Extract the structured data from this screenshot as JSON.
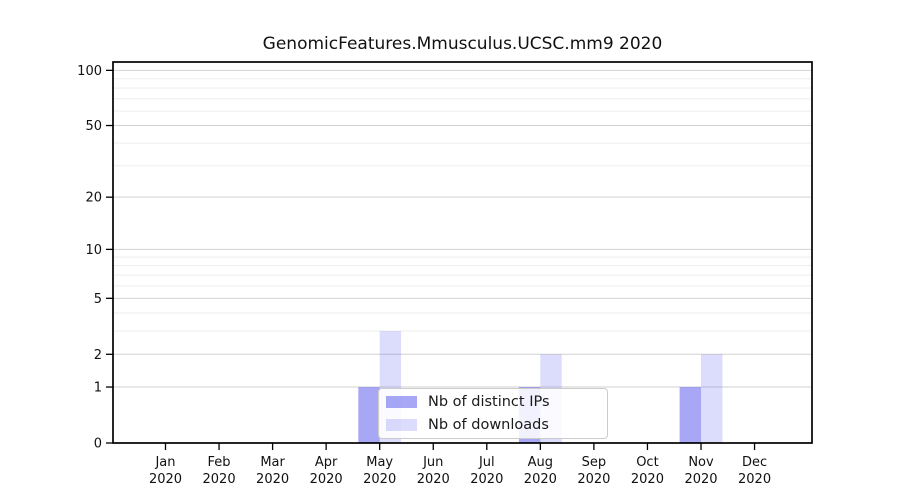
{
  "chart_data": {
    "type": "bar",
    "title": "GenomicFeatures.Mmusculus.UCSC.mm9 2020",
    "categories": [
      "Jan",
      "Feb",
      "Mar",
      "Apr",
      "May",
      "Jun",
      "Jul",
      "Aug",
      "Sep",
      "Oct",
      "Nov",
      "Dec"
    ],
    "year": "2020",
    "series": [
      {
        "name": "Nb of distinct IPs",
        "key": "distinct-ips",
        "values": [
          0,
          0,
          0,
          0,
          1,
          0,
          0,
          1,
          0,
          0,
          1,
          0
        ],
        "fill": "rgba(80,80,238,0.5)"
      },
      {
        "name": "Nb of downloads",
        "key": "downloads",
        "values": [
          0,
          0,
          0,
          0,
          3,
          0,
          0,
          2,
          0,
          0,
          2,
          0
        ],
        "fill": "rgba(80,80,238,0.2)"
      }
    ],
    "xlabel": "",
    "ylabel": "",
    "yscale": "log1p",
    "ylim": [
      0,
      111
    ],
    "yticks": [
      0,
      1,
      2,
      5,
      10,
      20,
      50,
      100
    ],
    "grid": true,
    "grid_minor": [
      3,
      4,
      6,
      7,
      8,
      9,
      30,
      40,
      60,
      70,
      80,
      90
    ],
    "legend_position": "inside-bottom-center",
    "colors": {
      "bar_base": "#5050ee",
      "grid_major": "#d2d2d2",
      "grid_minor": "#ededed",
      "axis": "#000000",
      "text": "#111111"
    }
  }
}
